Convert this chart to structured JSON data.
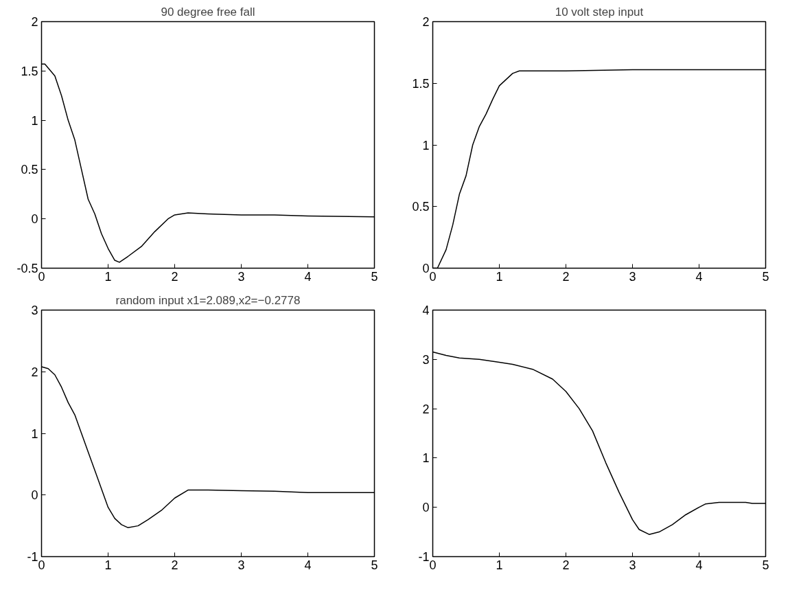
{
  "chart_data": [
    {
      "type": "line",
      "title": "90 degree free fall",
      "x": [
        0,
        0.05,
        0.1,
        0.2,
        0.3,
        0.4,
        0.5,
        0.6,
        0.7,
        0.8,
        0.9,
        1.0,
        1.1,
        1.17,
        1.3,
        1.5,
        1.7,
        1.9,
        2.0,
        2.2,
        2.5,
        3,
        3.5,
        4,
        5
      ],
      "series": [
        {
          "color": "#000000",
          "values": [
            1.57,
            1.57,
            1.53,
            1.45,
            1.25,
            1.0,
            0.8,
            0.5,
            0.2,
            0.05,
            -0.15,
            -0.3,
            -0.42,
            -0.44,
            -0.38,
            -0.28,
            -0.13,
            0.0,
            0.04,
            0.06,
            0.05,
            0.04,
            0.04,
            0.03,
            0.02
          ]
        }
      ],
      "xlim": [
        0,
        5
      ],
      "xticks": [
        0,
        1,
        2,
        3,
        4,
        5
      ],
      "ylim": [
        -0.5,
        2
      ],
      "yticks": [
        -0.5,
        0,
        0.5,
        1,
        1.5,
        2
      ],
      "grid": false,
      "line_style": "solid"
    },
    {
      "type": "line",
      "title": "10 volt step input",
      "x": [
        0,
        0.07,
        0.2,
        0.3,
        0.4,
        0.5,
        0.6,
        0.7,
        0.8,
        0.9,
        1.0,
        1.1,
        1.2,
        1.3,
        2,
        3,
        4,
        5
      ],
      "series": [
        {
          "color": "#000000",
          "values": [
            0,
            0,
            0.15,
            0.35,
            0.6,
            0.75,
            1.0,
            1.15,
            1.25,
            1.37,
            1.48,
            1.53,
            1.58,
            1.6,
            1.6,
            1.61,
            1.61,
            1.61
          ]
        }
      ],
      "xlim": [
        0,
        5
      ],
      "xticks": [
        0,
        1,
        2,
        3,
        4,
        5
      ],
      "ylim": [
        0,
        2
      ],
      "yticks": [
        0,
        0.5,
        1,
        1.5,
        2
      ],
      "grid": false,
      "line_style": "solid"
    },
    {
      "type": "line",
      "title": "random input x1=2.089,x2=−0.2778",
      "x": [
        0,
        0.1,
        0.2,
        0.3,
        0.4,
        0.5,
        0.6,
        0.7,
        0.8,
        0.9,
        1.0,
        1.1,
        1.2,
        1.3,
        1.45,
        1.6,
        1.8,
        2.0,
        2.2,
        2.5,
        3,
        3.5,
        4,
        5
      ],
      "series": [
        {
          "color": "#000000",
          "values": [
            2.08,
            2.05,
            1.95,
            1.75,
            1.5,
            1.3,
            1.0,
            0.7,
            0.4,
            0.1,
            -0.2,
            -0.38,
            -0.48,
            -0.53,
            -0.5,
            -0.4,
            -0.25,
            -0.05,
            0.08,
            0.08,
            0.07,
            0.06,
            0.04,
            0.04
          ]
        }
      ],
      "xlim": [
        0,
        5
      ],
      "xticks": [
        0,
        1,
        2,
        3,
        4,
        5
      ],
      "ylim": [
        -1,
        3
      ],
      "yticks": [
        -1,
        0,
        1,
        2,
        3
      ],
      "grid": false,
      "line_style": "solid"
    },
    {
      "type": "line",
      "x": [
        0,
        0.2,
        0.4,
        0.7,
        1.0,
        1.2,
        1.5,
        1.8,
        2.0,
        2.2,
        2.4,
        2.6,
        2.8,
        3.0,
        3.1,
        3.25,
        3.4,
        3.6,
        3.8,
        4.0,
        4.1,
        4.3,
        4.7,
        4.8,
        5
      ],
      "series": [
        {
          "color": "#000000",
          "values": [
            3.15,
            3.08,
            3.03,
            3.0,
            2.94,
            2.9,
            2.8,
            2.6,
            2.35,
            2.0,
            1.55,
            0.9,
            0.3,
            -0.25,
            -0.45,
            -0.55,
            -0.5,
            -0.35,
            -0.15,
            0.0,
            0.07,
            0.1,
            0.1,
            0.08,
            0.08
          ]
        }
      ],
      "xlim": [
        0,
        5
      ],
      "xticks": [
        0,
        1,
        2,
        3,
        4,
        5
      ],
      "ylim": [
        -1,
        4
      ],
      "yticks": [
        -1,
        0,
        1,
        2,
        3,
        4
      ],
      "grid": false,
      "line_style": "solid"
    }
  ]
}
